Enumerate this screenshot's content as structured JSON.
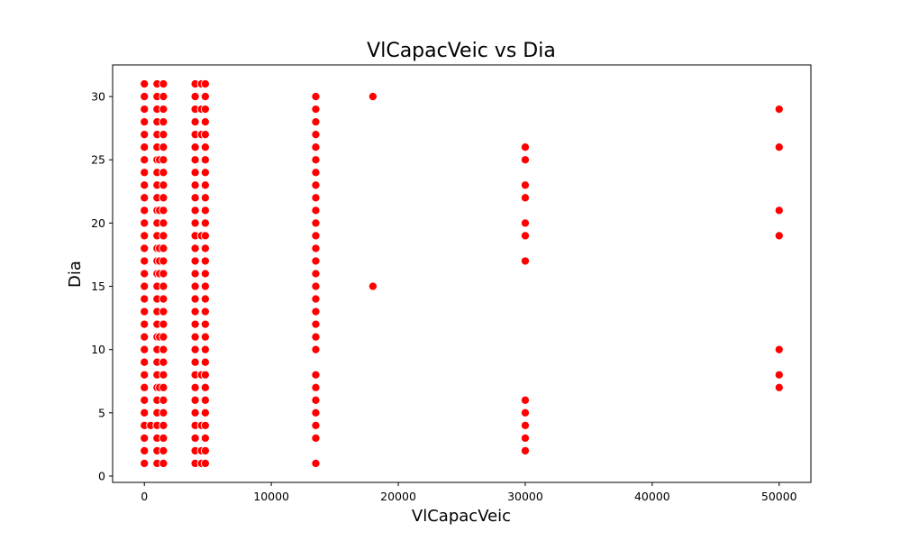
{
  "chart_data": {
    "type": "scatter",
    "title": "VlCapacVeic vs Dia",
    "xlabel": "VlCapacVeic",
    "ylabel": "Dia",
    "xlim": [
      -2500,
      52500
    ],
    "ylim": [
      -0.5,
      32.5
    ],
    "xticks": [
      0,
      10000,
      20000,
      30000,
      40000,
      50000
    ],
    "yticks": [
      0,
      5,
      10,
      15,
      20,
      25,
      30
    ],
    "grid": false,
    "legend": "none",
    "marker_color": "#ff0000",
    "marker_edge": "#ffffff",
    "groups": [
      {
        "x": 0,
        "days": [
          1,
          2,
          3,
          4,
          5,
          6,
          7,
          8,
          9,
          10,
          11,
          12,
          13,
          14,
          15,
          16,
          17,
          18,
          19,
          20,
          21,
          22,
          23,
          24,
          25,
          26,
          27,
          28,
          29,
          30,
          31
        ]
      },
      {
        "x": 500,
        "days": [
          4
        ]
      },
      {
        "x": 1000,
        "days": [
          1,
          2,
          3,
          4,
          5,
          6,
          7,
          8,
          9,
          10,
          11,
          12,
          13,
          14,
          15,
          16,
          17,
          18,
          19,
          20,
          21,
          22,
          23,
          24,
          25,
          26,
          27,
          28,
          29,
          30,
          31
        ]
      },
      {
        "x": 1200,
        "days": [
          7,
          11,
          16,
          17,
          18,
          21,
          25
        ]
      },
      {
        "x": 1500,
        "days": [
          1,
          2,
          3,
          4,
          5,
          6,
          7,
          8,
          9,
          10,
          11,
          12,
          13,
          14,
          15,
          16,
          17,
          18,
          19,
          20,
          21,
          22,
          23,
          24,
          25,
          26,
          27,
          28,
          29,
          30,
          31
        ]
      },
      {
        "x": 4000,
        "days": [
          1,
          2,
          3,
          4,
          5,
          6,
          7,
          8,
          9,
          10,
          11,
          12,
          13,
          14,
          15,
          16,
          17,
          18,
          19,
          20,
          21,
          22,
          23,
          24,
          25,
          26,
          27,
          28,
          29,
          30,
          31
        ]
      },
      {
        "x": 4500,
        "days": [
          1,
          2,
          4,
          8,
          19,
          27,
          29,
          31
        ]
      },
      {
        "x": 4800,
        "days": [
          1,
          2,
          3,
          4,
          5,
          6,
          7,
          8,
          9,
          10,
          11,
          12,
          13,
          14,
          15,
          16,
          17,
          18,
          19,
          20,
          21,
          22,
          23,
          24,
          25,
          26,
          27,
          28,
          29,
          30,
          31
        ]
      },
      {
        "x": 13500,
        "days": [
          1,
          3,
          4,
          5,
          6,
          7,
          8,
          10,
          11,
          12,
          13,
          14,
          15,
          16,
          17,
          18,
          19,
          20,
          21,
          22,
          23,
          24,
          25,
          26,
          27,
          28,
          29,
          30
        ]
      },
      {
        "x": 18000,
        "days": [
          15,
          30
        ]
      },
      {
        "x": 30000,
        "days": [
          2,
          3,
          4,
          5,
          6,
          17,
          19,
          20,
          22,
          23,
          25,
          26
        ]
      },
      {
        "x": 50000,
        "days": [
          7,
          8,
          10,
          19,
          21,
          26,
          29
        ]
      }
    ]
  }
}
